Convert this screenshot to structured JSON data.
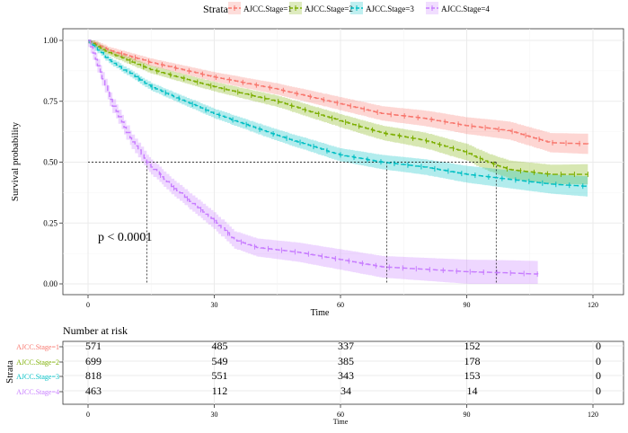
{
  "chart_data": [
    {
      "type": "line",
      "subtype": "kaplan-meier",
      "title": "",
      "xlabel": "Time",
      "ylabel": "Survival probability",
      "xlim": [
        0,
        120
      ],
      "ylim": [
        0,
        1
      ],
      "x_ticks": [
        "0",
        "30",
        "60",
        "90",
        "120"
      ],
      "y_ticks": [
        "0.00",
        "0.25",
        "0.50",
        "0.75",
        "1.00"
      ],
      "legend_title": "Strata",
      "legend_position": "top",
      "annotation": "p < 0.0001",
      "median_reference_y": 0.5,
      "medians": [
        14,
        71,
        97
      ],
      "series": [
        {
          "name": "AJCC.Stage=1",
          "color": "#F8766D",
          "x": [
            0,
            5,
            15,
            30,
            45,
            60,
            70,
            80,
            90,
            100,
            110,
            119
          ],
          "y": [
            1.0,
            0.96,
            0.91,
            0.85,
            0.8,
            0.74,
            0.7,
            0.68,
            0.65,
            0.63,
            0.58,
            0.575
          ]
        },
        {
          "name": "AJCC.Stage=2",
          "color": "#7CAE00",
          "x": [
            0,
            5,
            15,
            30,
            45,
            60,
            70,
            80,
            90,
            95,
            100,
            110,
            119
          ],
          "y": [
            1.0,
            0.95,
            0.88,
            0.81,
            0.75,
            0.67,
            0.62,
            0.59,
            0.54,
            0.5,
            0.47,
            0.45,
            0.45
          ]
        },
        {
          "name": "AJCC.Stage=3",
          "color": "#00BFC4",
          "x": [
            0,
            5,
            15,
            30,
            45,
            60,
            70,
            80,
            90,
            100,
            110,
            119
          ],
          "y": [
            1.0,
            0.92,
            0.81,
            0.7,
            0.61,
            0.53,
            0.5,
            0.48,
            0.45,
            0.43,
            0.41,
            0.4
          ]
        },
        {
          "name": "AJCC.Stage=4",
          "color": "#C77CFF",
          "x": [
            0,
            3,
            6,
            10,
            14,
            20,
            25,
            30,
            35,
            40,
            50,
            60,
            70,
            80,
            90,
            100,
            107
          ],
          "y": [
            1.0,
            0.87,
            0.73,
            0.6,
            0.5,
            0.4,
            0.33,
            0.26,
            0.18,
            0.15,
            0.13,
            0.1,
            0.07,
            0.06,
            0.05,
            0.045,
            0.04
          ]
        }
      ]
    },
    {
      "type": "table",
      "title": "Number at risk",
      "xlabel": "Time",
      "ylabel": "Strata",
      "x_ticks": [
        "0",
        "30",
        "60",
        "90",
        "120"
      ],
      "times": [
        0,
        30,
        60,
        90,
        120
      ],
      "rows": [
        {
          "name": "AJCC.Stage=1",
          "color": "#F8766D",
          "values": [
            "571",
            "485",
            "337",
            "152",
            "0"
          ]
        },
        {
          "name": "AJCC.Stage=2",
          "color": "#7CAE00",
          "values": [
            "699",
            "549",
            "385",
            "178",
            "0"
          ]
        },
        {
          "name": "AJCC.Stage=3",
          "color": "#00BFC4",
          "values": [
            "818",
            "551",
            "343",
            "153",
            "0"
          ]
        },
        {
          "name": "AJCC.Stage=4",
          "color": "#C77CFF",
          "values": [
            "463",
            "112",
            "34",
            "14",
            "0"
          ]
        }
      ]
    }
  ]
}
